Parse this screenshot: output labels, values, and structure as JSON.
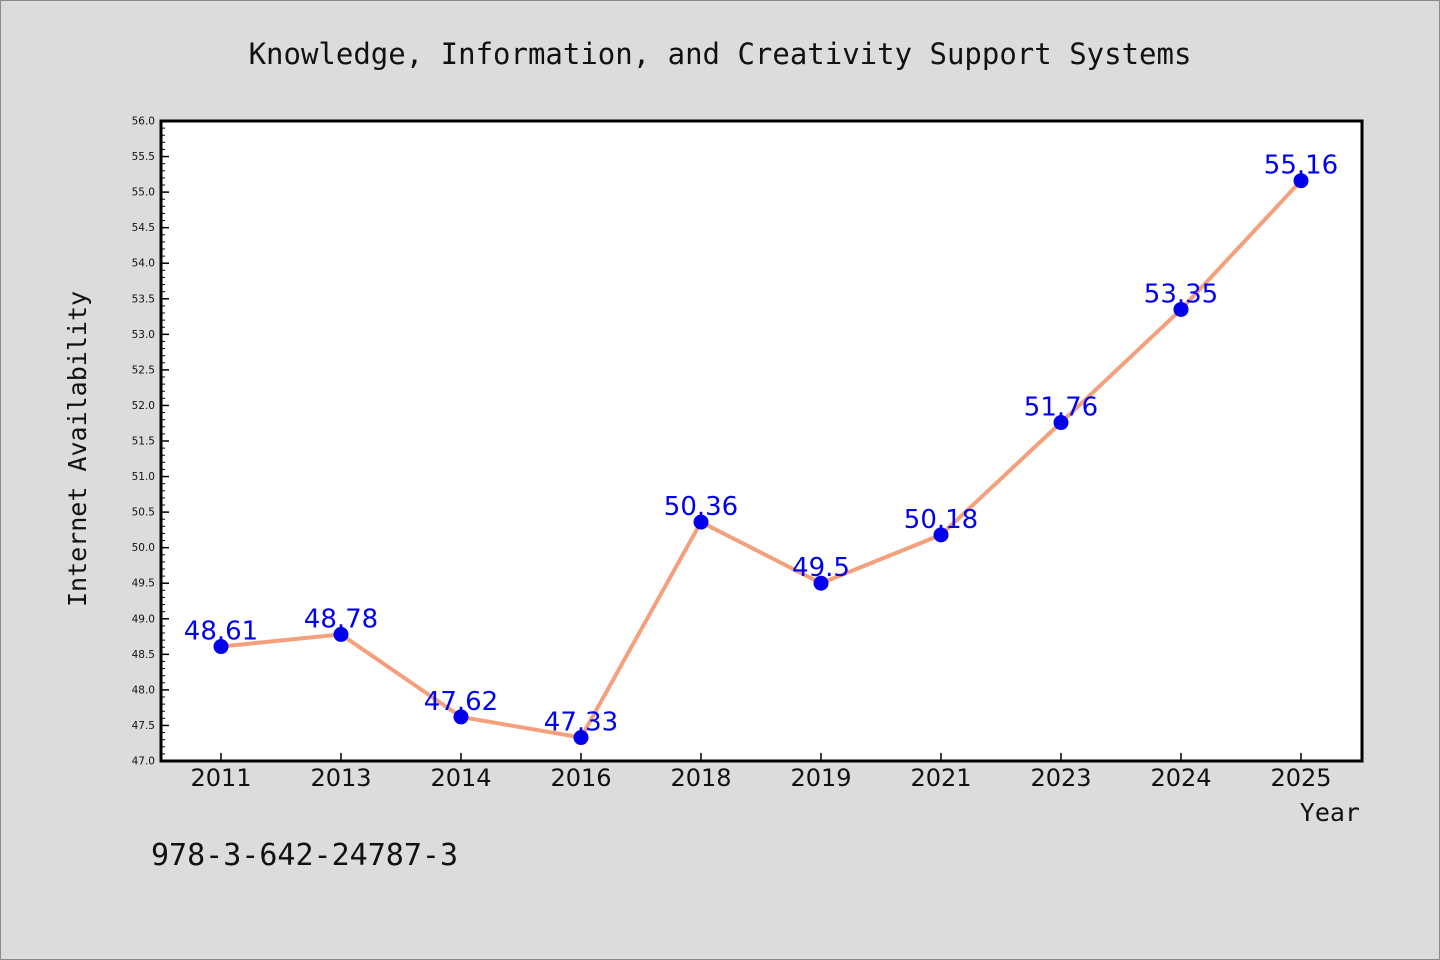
{
  "chart_data": {
    "type": "line",
    "title": "Knowledge, Information, and Creativity Support Systems",
    "xlabel": "Year",
    "ylabel": "Internet Availability",
    "categories": [
      "2011",
      "2013",
      "2014",
      "2016",
      "2018",
      "2019",
      "2021",
      "2023",
      "2024",
      "2025"
    ],
    "series": [
      {
        "values": [
          48.61,
          48.78,
          47.62,
          47.33,
          50.36,
          49.5,
          50.18,
          51.76,
          53.35,
          55.16
        ],
        "labels": [
          "48.61",
          "48.78",
          "47.62",
          "47.33",
          "50.36",
          "49.5",
          "50.18",
          "51.76",
          "53.35",
          "55.16"
        ]
      }
    ],
    "ylim": [
      47.0,
      56.0
    ],
    "y_tick_step": 0.5,
    "grid": false,
    "legend": "none",
    "footnote": "978-3-642-24787-3",
    "colors": {
      "background": "#dcdcdc",
      "plot_background": "#ffffff",
      "line": "#f4a07c",
      "marker": "#0000ee",
      "label": "#0000ee",
      "text": "#111111"
    }
  }
}
